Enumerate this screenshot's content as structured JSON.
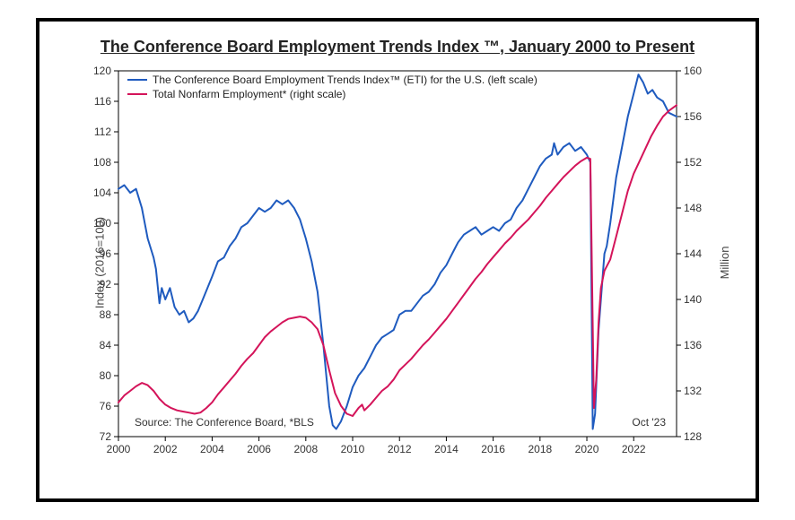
{
  "chart": {
    "type": "line-dual-axis",
    "title": "The Conference Board Employment Trends Index ™, January 2000 to Present",
    "title_fontsize": 18,
    "title_color": "#222222",
    "background_color": "#ffffff",
    "frame_border_color": "#000000",
    "frame_border_width": 4,
    "plot_border_color": "#000000",
    "plot_border_width": 1,
    "grid": false,
    "legend": {
      "position": "top-left-inside",
      "fontsize": 12,
      "items": [
        {
          "label": "The Conference Board Employment Trends Index™ (ETI) for the U.S. (left scale)",
          "color": "#1f5bbf"
        },
        {
          "label": "Total Nonfarm Employment* (right scale)",
          "color": "#d4145a"
        }
      ]
    },
    "source_note": {
      "text": "Source: The Conference Board, *BLS",
      "fontsize": 12,
      "color": "#333333"
    },
    "end_label": {
      "text": "Oct '23",
      "fontsize": 12,
      "color": "#333333"
    },
    "x_axis": {
      "label": "",
      "min": 2000,
      "max": 2023.83,
      "ticks": [
        2000,
        2002,
        2004,
        2006,
        2008,
        2010,
        2012,
        2014,
        2016,
        2018,
        2020,
        2022
      ],
      "tick_fontsize": 12,
      "tick_color": "#333333"
    },
    "y_left": {
      "label": "Index (2016=100)",
      "label_fontsize": 13,
      "min": 72,
      "max": 120,
      "ticks": [
        72,
        76,
        80,
        84,
        88,
        92,
        96,
        100,
        104,
        108,
        112,
        116,
        120
      ],
      "tick_fontsize": 12,
      "color": "#333333"
    },
    "y_right": {
      "label": "Million",
      "label_fontsize": 13,
      "min": 128,
      "max": 160,
      "ticks": [
        128,
        132,
        136,
        140,
        144,
        148,
        152,
        156,
        160
      ],
      "tick_fontsize": 12,
      "color": "#333333"
    },
    "series": [
      {
        "name": "ETI",
        "axis": "left",
        "color": "#1f5bbf",
        "line_width": 2,
        "data": [
          {
            "x": 2000.0,
            "y": 104.5
          },
          {
            "x": 2000.25,
            "y": 105.0
          },
          {
            "x": 2000.5,
            "y": 104.0
          },
          {
            "x": 2000.75,
            "y": 104.5
          },
          {
            "x": 2001.0,
            "y": 102.0
          },
          {
            "x": 2001.25,
            "y": 98.0
          },
          {
            "x": 2001.5,
            "y": 95.5
          },
          {
            "x": 2001.6,
            "y": 94.0
          },
          {
            "x": 2001.75,
            "y": 89.5
          },
          {
            "x": 2001.85,
            "y": 91.5
          },
          {
            "x": 2002.0,
            "y": 90.0
          },
          {
            "x": 2002.2,
            "y": 91.5
          },
          {
            "x": 2002.4,
            "y": 89.0
          },
          {
            "x": 2002.6,
            "y": 88.0
          },
          {
            "x": 2002.8,
            "y": 88.5
          },
          {
            "x": 2003.0,
            "y": 87.0
          },
          {
            "x": 2003.2,
            "y": 87.5
          },
          {
            "x": 2003.4,
            "y": 88.5
          },
          {
            "x": 2003.6,
            "y": 90.0
          },
          {
            "x": 2003.8,
            "y": 91.5
          },
          {
            "x": 2004.0,
            "y": 93.0
          },
          {
            "x": 2004.25,
            "y": 95.0
          },
          {
            "x": 2004.5,
            "y": 95.5
          },
          {
            "x": 2004.75,
            "y": 97.0
          },
          {
            "x": 2005.0,
            "y": 98.0
          },
          {
            "x": 2005.25,
            "y": 99.5
          },
          {
            "x": 2005.5,
            "y": 100.0
          },
          {
            "x": 2005.75,
            "y": 101.0
          },
          {
            "x": 2006.0,
            "y": 102.0
          },
          {
            "x": 2006.25,
            "y": 101.5
          },
          {
            "x": 2006.5,
            "y": 102.0
          },
          {
            "x": 2006.75,
            "y": 103.0
          },
          {
            "x": 2007.0,
            "y": 102.5
          },
          {
            "x": 2007.25,
            "y": 103.0
          },
          {
            "x": 2007.5,
            "y": 102.0
          },
          {
            "x": 2007.75,
            "y": 100.5
          },
          {
            "x": 2008.0,
            "y": 98.0
          },
          {
            "x": 2008.25,
            "y": 95.0
          },
          {
            "x": 2008.5,
            "y": 91.0
          },
          {
            "x": 2008.75,
            "y": 84.0
          },
          {
            "x": 2009.0,
            "y": 76.0
          },
          {
            "x": 2009.15,
            "y": 73.5
          },
          {
            "x": 2009.3,
            "y": 73.0
          },
          {
            "x": 2009.5,
            "y": 74.0
          },
          {
            "x": 2009.75,
            "y": 76.0
          },
          {
            "x": 2010.0,
            "y": 78.5
          },
          {
            "x": 2010.25,
            "y": 80.0
          },
          {
            "x": 2010.5,
            "y": 81.0
          },
          {
            "x": 2010.75,
            "y": 82.5
          },
          {
            "x": 2011.0,
            "y": 84.0
          },
          {
            "x": 2011.25,
            "y": 85.0
          },
          {
            "x": 2011.5,
            "y": 85.5
          },
          {
            "x": 2011.75,
            "y": 86.0
          },
          {
            "x": 2012.0,
            "y": 88.0
          },
          {
            "x": 2012.25,
            "y": 88.5
          },
          {
            "x": 2012.5,
            "y": 88.5
          },
          {
            "x": 2012.75,
            "y": 89.5
          },
          {
            "x": 2013.0,
            "y": 90.5
          },
          {
            "x": 2013.25,
            "y": 91.0
          },
          {
            "x": 2013.5,
            "y": 92.0
          },
          {
            "x": 2013.75,
            "y": 93.5
          },
          {
            "x": 2014.0,
            "y": 94.5
          },
          {
            "x": 2014.25,
            "y": 96.0
          },
          {
            "x": 2014.5,
            "y": 97.5
          },
          {
            "x": 2014.75,
            "y": 98.5
          },
          {
            "x": 2015.0,
            "y": 99.0
          },
          {
            "x": 2015.25,
            "y": 99.5
          },
          {
            "x": 2015.5,
            "y": 98.5
          },
          {
            "x": 2015.75,
            "y": 99.0
          },
          {
            "x": 2016.0,
            "y": 99.5
          },
          {
            "x": 2016.25,
            "y": 99.0
          },
          {
            "x": 2016.5,
            "y": 100.0
          },
          {
            "x": 2016.75,
            "y": 100.5
          },
          {
            "x": 2017.0,
            "y": 102.0
          },
          {
            "x": 2017.25,
            "y": 103.0
          },
          {
            "x": 2017.5,
            "y": 104.5
          },
          {
            "x": 2017.75,
            "y": 106.0
          },
          {
            "x": 2018.0,
            "y": 107.5
          },
          {
            "x": 2018.25,
            "y": 108.5
          },
          {
            "x": 2018.5,
            "y": 109.0
          },
          {
            "x": 2018.6,
            "y": 110.5
          },
          {
            "x": 2018.75,
            "y": 109.0
          },
          {
            "x": 2019.0,
            "y": 110.0
          },
          {
            "x": 2019.25,
            "y": 110.5
          },
          {
            "x": 2019.5,
            "y": 109.5
          },
          {
            "x": 2019.75,
            "y": 110.0
          },
          {
            "x": 2020.0,
            "y": 109.0
          },
          {
            "x": 2020.15,
            "y": 108.0
          },
          {
            "x": 2020.25,
            "y": 73.0
          },
          {
            "x": 2020.35,
            "y": 75.0
          },
          {
            "x": 2020.5,
            "y": 86.0
          },
          {
            "x": 2020.65,
            "y": 92.0
          },
          {
            "x": 2020.75,
            "y": 96.0
          },
          {
            "x": 2020.85,
            "y": 97.0
          },
          {
            "x": 2021.0,
            "y": 100.0
          },
          {
            "x": 2021.25,
            "y": 106.0
          },
          {
            "x": 2021.5,
            "y": 110.0
          },
          {
            "x": 2021.75,
            "y": 114.0
          },
          {
            "x": 2022.0,
            "y": 117.0
          },
          {
            "x": 2022.2,
            "y": 119.5
          },
          {
            "x": 2022.4,
            "y": 118.5
          },
          {
            "x": 2022.6,
            "y": 117.0
          },
          {
            "x": 2022.8,
            "y": 117.5
          },
          {
            "x": 2023.0,
            "y": 116.5
          },
          {
            "x": 2023.25,
            "y": 116.0
          },
          {
            "x": 2023.5,
            "y": 114.5
          },
          {
            "x": 2023.83,
            "y": 114.0
          }
        ]
      },
      {
        "name": "Nonfarm",
        "axis": "right",
        "color": "#d4145a",
        "line_width": 2,
        "data": [
          {
            "x": 2000.0,
            "y": 131.0
          },
          {
            "x": 2000.25,
            "y": 131.6
          },
          {
            "x": 2000.5,
            "y": 132.0
          },
          {
            "x": 2000.75,
            "y": 132.4
          },
          {
            "x": 2001.0,
            "y": 132.7
          },
          {
            "x": 2001.25,
            "y": 132.5
          },
          {
            "x": 2001.5,
            "y": 132.0
          },
          {
            "x": 2001.75,
            "y": 131.3
          },
          {
            "x": 2002.0,
            "y": 130.8
          },
          {
            "x": 2002.25,
            "y": 130.5
          },
          {
            "x": 2002.5,
            "y": 130.3
          },
          {
            "x": 2002.75,
            "y": 130.2
          },
          {
            "x": 2003.0,
            "y": 130.1
          },
          {
            "x": 2003.25,
            "y": 130.0
          },
          {
            "x": 2003.5,
            "y": 130.1
          },
          {
            "x": 2003.75,
            "y": 130.5
          },
          {
            "x": 2004.0,
            "y": 131.0
          },
          {
            "x": 2004.25,
            "y": 131.7
          },
          {
            "x": 2004.5,
            "y": 132.3
          },
          {
            "x": 2004.75,
            "y": 132.9
          },
          {
            "x": 2005.0,
            "y": 133.5
          },
          {
            "x": 2005.25,
            "y": 134.2
          },
          {
            "x": 2005.5,
            "y": 134.8
          },
          {
            "x": 2005.75,
            "y": 135.3
          },
          {
            "x": 2006.0,
            "y": 136.0
          },
          {
            "x": 2006.25,
            "y": 136.7
          },
          {
            "x": 2006.5,
            "y": 137.2
          },
          {
            "x": 2006.75,
            "y": 137.6
          },
          {
            "x": 2007.0,
            "y": 138.0
          },
          {
            "x": 2007.25,
            "y": 138.3
          },
          {
            "x": 2007.5,
            "y": 138.4
          },
          {
            "x": 2007.75,
            "y": 138.5
          },
          {
            "x": 2008.0,
            "y": 138.4
          },
          {
            "x": 2008.25,
            "y": 138.0
          },
          {
            "x": 2008.5,
            "y": 137.4
          },
          {
            "x": 2008.75,
            "y": 136.0
          },
          {
            "x": 2009.0,
            "y": 133.8
          },
          {
            "x": 2009.25,
            "y": 131.8
          },
          {
            "x": 2009.5,
            "y": 130.7
          },
          {
            "x": 2009.75,
            "y": 130.0
          },
          {
            "x": 2010.0,
            "y": 129.8
          },
          {
            "x": 2010.25,
            "y": 130.5
          },
          {
            "x": 2010.4,
            "y": 130.8
          },
          {
            "x": 2010.5,
            "y": 130.3
          },
          {
            "x": 2010.75,
            "y": 130.8
          },
          {
            "x": 2011.0,
            "y": 131.4
          },
          {
            "x": 2011.25,
            "y": 132.0
          },
          {
            "x": 2011.5,
            "y": 132.4
          },
          {
            "x": 2011.75,
            "y": 133.0
          },
          {
            "x": 2012.0,
            "y": 133.8
          },
          {
            "x": 2012.25,
            "y": 134.3
          },
          {
            "x": 2012.5,
            "y": 134.8
          },
          {
            "x": 2012.75,
            "y": 135.4
          },
          {
            "x": 2013.0,
            "y": 136.0
          },
          {
            "x": 2013.25,
            "y": 136.5
          },
          {
            "x": 2013.5,
            "y": 137.1
          },
          {
            "x": 2013.75,
            "y": 137.7
          },
          {
            "x": 2014.0,
            "y": 138.3
          },
          {
            "x": 2014.25,
            "y": 139.0
          },
          {
            "x": 2014.5,
            "y": 139.7
          },
          {
            "x": 2014.75,
            "y": 140.4
          },
          {
            "x": 2015.0,
            "y": 141.1
          },
          {
            "x": 2015.25,
            "y": 141.8
          },
          {
            "x": 2015.5,
            "y": 142.4
          },
          {
            "x": 2015.75,
            "y": 143.1
          },
          {
            "x": 2016.0,
            "y": 143.7
          },
          {
            "x": 2016.25,
            "y": 144.3
          },
          {
            "x": 2016.5,
            "y": 144.9
          },
          {
            "x": 2016.75,
            "y": 145.4
          },
          {
            "x": 2017.0,
            "y": 146.0
          },
          {
            "x": 2017.25,
            "y": 146.5
          },
          {
            "x": 2017.5,
            "y": 147.0
          },
          {
            "x": 2017.75,
            "y": 147.6
          },
          {
            "x": 2018.0,
            "y": 148.2
          },
          {
            "x": 2018.25,
            "y": 148.9
          },
          {
            "x": 2018.5,
            "y": 149.5
          },
          {
            "x": 2018.75,
            "y": 150.1
          },
          {
            "x": 2019.0,
            "y": 150.7
          },
          {
            "x": 2019.25,
            "y": 151.2
          },
          {
            "x": 2019.5,
            "y": 151.7
          },
          {
            "x": 2019.75,
            "y": 152.1
          },
          {
            "x": 2020.0,
            "y": 152.4
          },
          {
            "x": 2020.15,
            "y": 152.3
          },
          {
            "x": 2020.3,
            "y": 130.5
          },
          {
            "x": 2020.4,
            "y": 133.0
          },
          {
            "x": 2020.5,
            "y": 138.0
          },
          {
            "x": 2020.6,
            "y": 141.0
          },
          {
            "x": 2020.75,
            "y": 142.5
          },
          {
            "x": 2021.0,
            "y": 143.5
          },
          {
            "x": 2021.25,
            "y": 145.5
          },
          {
            "x": 2021.5,
            "y": 147.5
          },
          {
            "x": 2021.75,
            "y": 149.5
          },
          {
            "x": 2022.0,
            "y": 151.0
          },
          {
            "x": 2022.25,
            "y": 152.1
          },
          {
            "x": 2022.5,
            "y": 153.2
          },
          {
            "x": 2022.75,
            "y": 154.3
          },
          {
            "x": 2023.0,
            "y": 155.2
          },
          {
            "x": 2023.25,
            "y": 156.0
          },
          {
            "x": 2023.5,
            "y": 156.5
          },
          {
            "x": 2023.83,
            "y": 157.0
          }
        ]
      }
    ]
  }
}
